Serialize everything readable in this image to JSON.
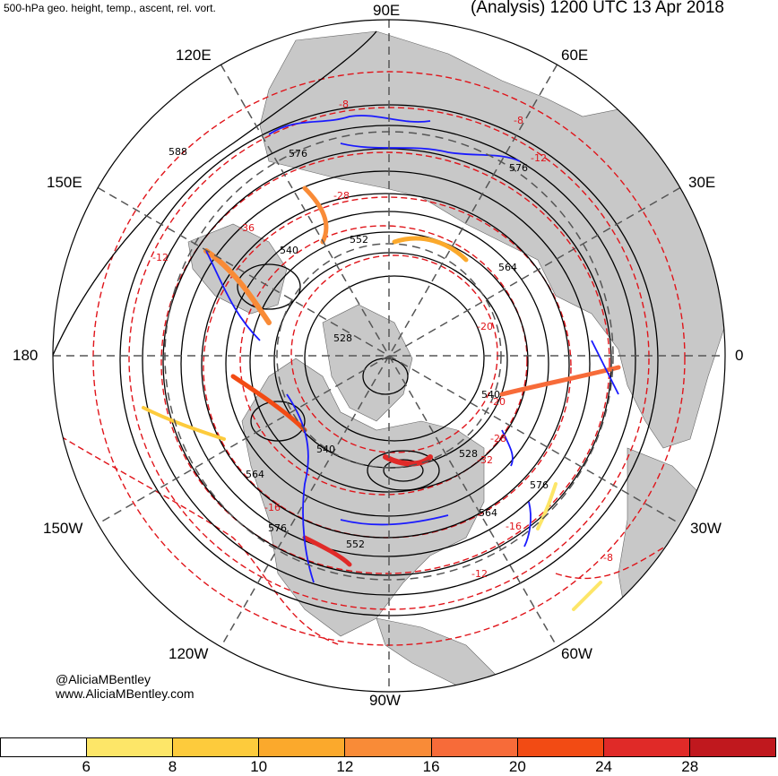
{
  "header": {
    "left_title": "500-hPa geo. height, temp., ascent, rel. vort.",
    "right_title": "(Analysis) 1200 UTC 13 Apr 2018"
  },
  "longitude_labels": {
    "e90": "90E",
    "e60": "60E",
    "e120": "120E",
    "e150": "150E",
    "e30": "30E",
    "l180": "180",
    "l0": "0",
    "w150": "150W",
    "w30": "30W",
    "w120": "120W",
    "w60": "60W",
    "w90": "90W"
  },
  "height_contour_labels": [
    "588",
    "576",
    "576",
    "552",
    "540",
    "564",
    "528",
    "540",
    "540",
    "528",
    "576",
    "564",
    "564",
    "576",
    "552"
  ],
  "temperature_contour_labels": [
    "-8",
    "-8",
    "-12",
    "-28",
    "-36",
    "-20",
    "-20",
    "-28",
    "-32",
    "-16",
    "-12",
    "-8",
    "-12",
    "-16"
  ],
  "credit": {
    "handle": "@AliciaMBentley",
    "site": "www.AliciaMBentley.com"
  },
  "colorbar": {
    "colors": [
      "#ffffff",
      "#fde668",
      "#fdcb3c",
      "#fba92c",
      "#f98b37",
      "#f76b39",
      "#f24b14",
      "#e02a28",
      "#c0181e"
    ],
    "tick_labels": [
      "6",
      "8",
      "10",
      "12",
      "16",
      "20",
      "24",
      "28"
    ]
  },
  "map_colors": {
    "land": "#c8c8c8",
    "ocean": "#ffffff",
    "height_contour": "#000000",
    "temperature_contour": "#e0141a",
    "ascent": "#1a1aff",
    "grid": "#555555"
  }
}
